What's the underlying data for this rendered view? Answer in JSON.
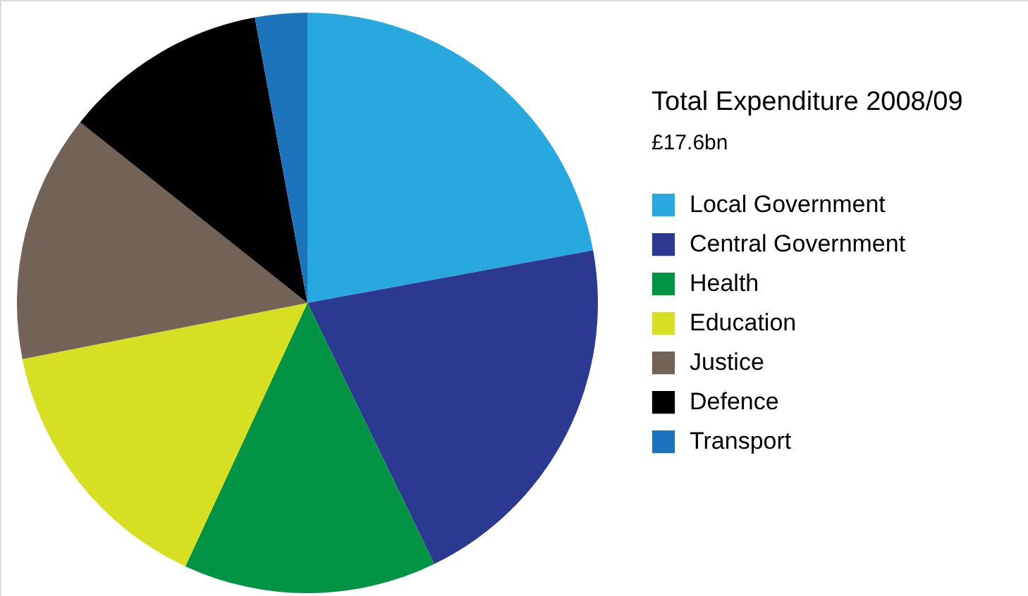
{
  "chart_data": {
    "type": "pie",
    "title": "Total Expenditure 2008/09",
    "subtitle": "£17.6bn",
    "categories": [
      "Local Government",
      "Central Government",
      "Health",
      "Education",
      "Justice",
      "Defence",
      "Transport"
    ],
    "values": [
      22.1,
      20.7,
      14.1,
      15.0,
      13.8,
      11.4,
      2.9
    ],
    "colors": [
      "#29a8e0",
      "#2b3990",
      "#009444",
      "#d7df23",
      "#736357",
      "#000000",
      "#1c75bc"
    ],
    "legend": "right"
  }
}
